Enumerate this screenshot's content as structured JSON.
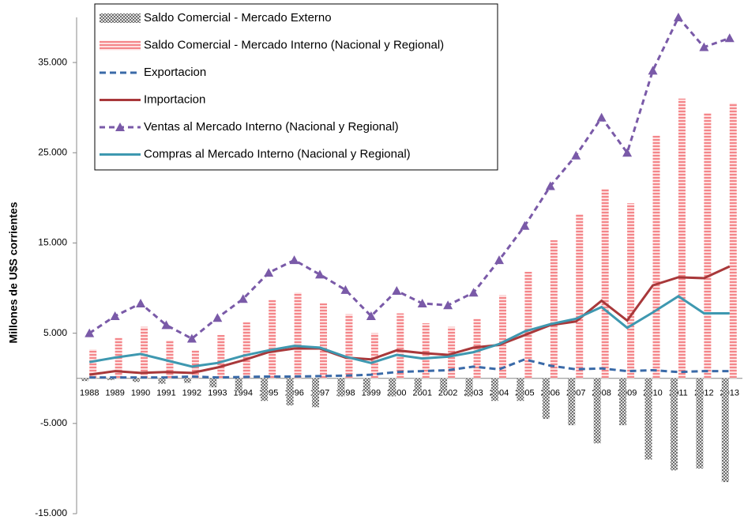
{
  "chart_data": {
    "type": "combo",
    "y_label": "Millones de U$S corrientes",
    "categories": [
      "1988",
      "1989",
      "1990",
      "1991",
      "1992",
      "1993",
      "1994",
      "1995",
      "1996",
      "1997",
      "1998",
      "1999",
      "2000",
      "2001",
      "2002",
      "2003",
      "2004",
      "2005",
      "2006",
      "2007",
      "2008",
      "2009",
      "2010",
      "2011",
      "2012",
      "2013"
    ],
    "ylim": [
      -15000,
      40000
    ],
    "yticks": [
      {
        "value": -15000,
        "label": "-15.000"
      },
      {
        "value": -5000,
        "label": "-5.000"
      },
      {
        "value": 5000,
        "label": "5.000"
      },
      {
        "value": 15000,
        "label": "15.000"
      },
      {
        "value": 25000,
        "label": "25.000"
      },
      {
        "value": 35000,
        "label": "35.000"
      }
    ],
    "legend": "top-left",
    "series": [
      {
        "name": "Saldo Comercial - Mercado Externo",
        "type": "bar",
        "color": "#808080",
        "pattern": "checker",
        "values": [
          -300,
          -200,
          -400,
          -600,
          -500,
          -1000,
          -1500,
          -2500,
          -3000,
          -3200,
          -2000,
          -1500,
          -2000,
          -1500,
          -1500,
          -2000,
          -2500,
          -2500,
          -4500,
          -5200,
          -7200,
          -5200,
          -9000,
          -10200,
          -10000,
          -11500
        ]
      },
      {
        "name": "Saldo Comercial - Mercado Interno (Nacional y Regional)",
        "type": "bar",
        "color": "#f4868a",
        "pattern": "stripes",
        "values": [
          3200,
          4500,
          5700,
          4200,
          3100,
          4800,
          6200,
          8700,
          9500,
          8300,
          7100,
          5000,
          7200,
          6100,
          5700,
          6600,
          9200,
          11800,
          15300,
          18200,
          21000,
          19400,
          26900,
          31000,
          29400,
          30500
        ]
      },
      {
        "name": "Exportacion",
        "type": "line",
        "color": "#3a6aa8",
        "dash": "8 5",
        "values": [
          100,
          100,
          100,
          100,
          200,
          100,
          150,
          200,
          200,
          250,
          300,
          400,
          700,
          800,
          900,
          1300,
          1000,
          2100,
          1400,
          1000,
          1100,
          800,
          900,
          700,
          800,
          800
        ]
      },
      {
        "name": "Importacion",
        "type": "line",
        "color": "#a8383a",
        "values": [
          400,
          800,
          600,
          700,
          600,
          1200,
          2000,
          2900,
          3300,
          3300,
          2300,
          2100,
          3100,
          2800,
          2600,
          3400,
          3700,
          4800,
          5900,
          6300,
          8600,
          6400,
          10300,
          11200,
          11100,
          12400
        ]
      },
      {
        "name": "Ventas al Mercado Interno (Nacional y Regional)",
        "type": "line",
        "color": "#7a5aa8",
        "dash": "7 5",
        "marker": "triangle",
        "values": [
          5000,
          6900,
          8300,
          5900,
          4400,
          6700,
          8800,
          11700,
          13100,
          11500,
          9800,
          6900,
          9700,
          8300,
          8100,
          9500,
          13100,
          16900,
          21300,
          24700,
          28900,
          25000,
          34100,
          40000,
          36700,
          37700
        ]
      },
      {
        "name": "Compras al Mercado Interno (Nacional y Regional)",
        "type": "line",
        "color": "#3e98b0",
        "values": [
          1800,
          2300,
          2700,
          2000,
          1300,
          1700,
          2500,
          3100,
          3600,
          3400,
          2400,
          1700,
          2600,
          2200,
          2400,
          2900,
          3800,
          5200,
          6000,
          6600,
          7900,
          5600,
          7300,
          9100,
          7200,
          7200
        ]
      }
    ]
  }
}
